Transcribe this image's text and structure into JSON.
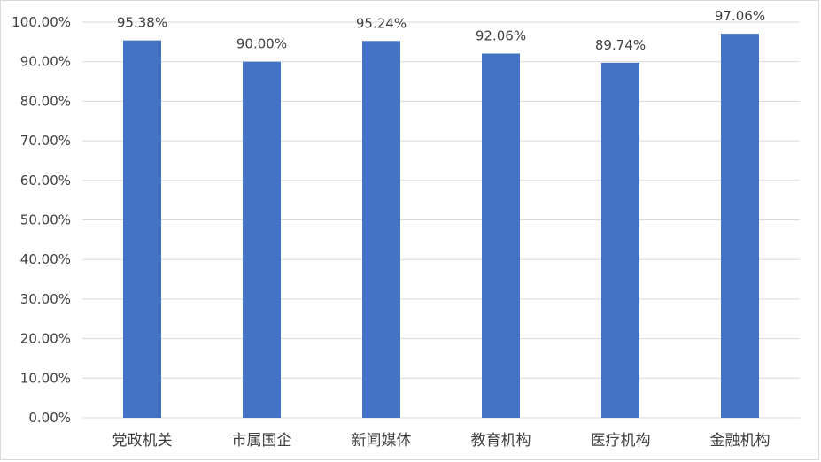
{
  "chart_data": {
    "type": "bar",
    "categories": [
      "党政机关",
      "市属国企",
      "新闻媒体",
      "教育机构",
      "医疗机构",
      "金融机构"
    ],
    "values": [
      95.38,
      90.0,
      95.24,
      92.06,
      89.74,
      97.06
    ],
    "value_labels": [
      "95.38%",
      "90.00%",
      "95.24%",
      "92.06%",
      "89.74%",
      "97.06%"
    ],
    "y_ticks": [
      "0.00%",
      "10.00%",
      "20.00%",
      "30.00%",
      "40.00%",
      "50.00%",
      "60.00%",
      "70.00%",
      "80.00%",
      "90.00%",
      "100.00%"
    ],
    "ylim": [
      0,
      100
    ],
    "title": "",
    "xlabel": "",
    "ylabel": "",
    "grid": true,
    "legend": "none",
    "bar_color": "#4472c4",
    "gridline_color": "#d9d9d9"
  }
}
